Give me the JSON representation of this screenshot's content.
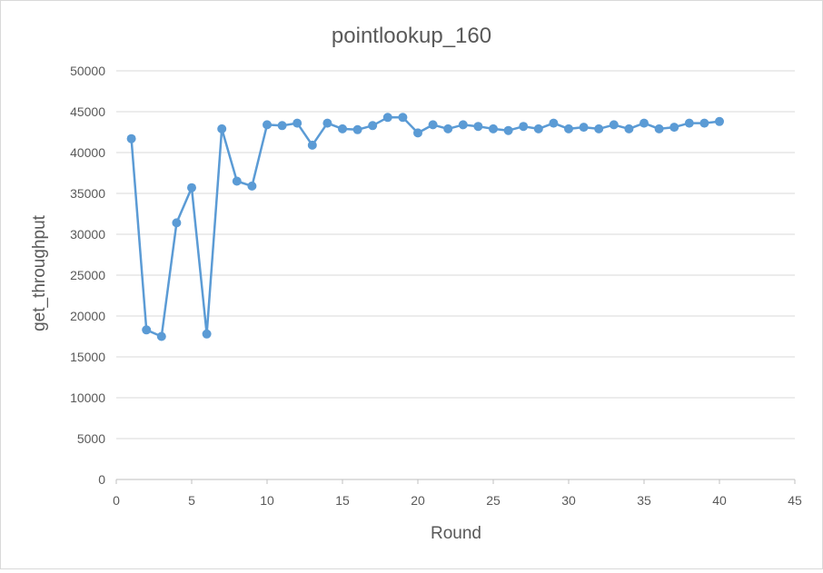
{
  "chart_data": {
    "type": "scatter",
    "title": "pointlookup_160",
    "xlabel": "Round",
    "ylabel": "get_throughput",
    "xlim": [
      0,
      45
    ],
    "ylim": [
      0,
      50000
    ],
    "x_ticks": [
      0,
      5,
      10,
      15,
      20,
      25,
      30,
      35,
      40,
      45
    ],
    "y_ticks": [
      0,
      5000,
      10000,
      15000,
      20000,
      25000,
      30000,
      35000,
      40000,
      45000,
      50000
    ],
    "grid": "horizontal",
    "legend": "none",
    "series": [
      {
        "color": "#5b9bd5",
        "markers": true,
        "lines": true,
        "x": [
          1,
          2,
          3,
          4,
          5,
          6,
          7,
          8,
          9,
          10,
          11,
          12,
          13,
          14,
          15,
          16,
          17,
          18,
          19,
          20,
          21,
          22,
          23,
          24,
          25,
          26,
          27,
          28,
          29,
          30,
          31,
          32,
          33,
          34,
          35,
          36,
          37,
          38,
          39,
          40
        ],
        "y": [
          41700,
          18300,
          17500,
          31400,
          35700,
          17800,
          42900,
          36500,
          35900,
          43400,
          43300,
          43600,
          40900,
          43600,
          42900,
          42800,
          43300,
          44300,
          44300,
          42400,
          43400,
          42900,
          43400,
          43200,
          42900,
          42700,
          43200,
          42900,
          43600,
          42900,
          43100,
          42900,
          43400,
          42900,
          43600,
          42900,
          43100,
          43600,
          43600,
          43800
        ]
      }
    ]
  }
}
